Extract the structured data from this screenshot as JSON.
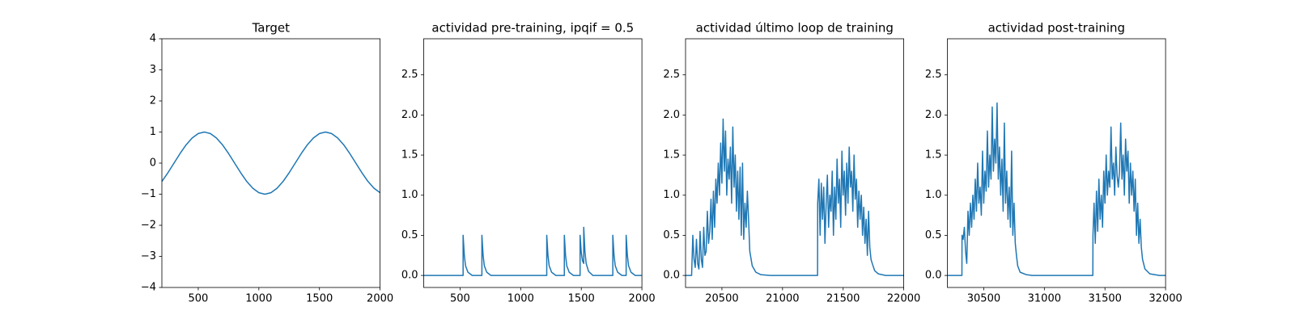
{
  "chart_data": [
    {
      "type": "line",
      "title": "Target",
      "x": [
        200,
        250,
        300,
        350,
        400,
        450,
        500,
        550,
        600,
        650,
        700,
        750,
        800,
        850,
        900,
        950,
        1000,
        1050,
        1100,
        1150,
        1200,
        1250,
        1300,
        1350,
        1400,
        1450,
        1500,
        1550,
        1600,
        1650,
        1700,
        1750,
        1800,
        1850,
        1900,
        1950,
        2000
      ],
      "series": [
        {
          "color": "#1f77b4",
          "values": [
            -0.588,
            -0.309,
            0,
            0.309,
            0.588,
            0.809,
            0.951,
            1,
            0.951,
            0.809,
            0.588,
            0.309,
            0,
            -0.309,
            -0.588,
            -0.809,
            -0.951,
            -1,
            -0.951,
            -0.809,
            -0.588,
            -0.309,
            0,
            0.309,
            0.588,
            0.809,
            0.951,
            1,
            0.951,
            0.809,
            0.588,
            0.309,
            0,
            -0.309,
            -0.588,
            -0.809,
            -0.951
          ]
        }
      ],
      "xlim": [
        200,
        2000
      ],
      "xticks": [
        500,
        1000,
        1500,
        2000
      ],
      "ylim": [
        -4,
        4
      ],
      "yticks": [
        {
          "value": -4,
          "label": "−4"
        },
        {
          "value": -3,
          "label": "−3"
        },
        {
          "value": -2,
          "label": "−2"
        },
        {
          "value": -1,
          "label": "−1"
        },
        0,
        1,
        2,
        3,
        4
      ]
    },
    {
      "type": "line",
      "title": "actividad pre-training, ipqif = 0.5",
      "x": [
        200,
        525,
        525,
        535,
        545,
        565,
        600,
        680,
        680,
        690,
        700,
        720,
        755,
        1215,
        1215,
        1225,
        1235,
        1255,
        1290,
        1360,
        1360,
        1370,
        1380,
        1400,
        1435,
        1490,
        1490,
        1500,
        1510,
        1520,
        1520,
        1530,
        1540,
        1560,
        1595,
        1760,
        1760,
        1770,
        1780,
        1800,
        1835,
        1870,
        1870,
        1880,
        1890,
        1910,
        1945,
        2000
      ],
      "series": [
        {
          "color": "#1f77b4",
          "values": [
            0,
            0,
            0.5,
            0.25,
            0.12,
            0.04,
            0,
            0,
            0.5,
            0.25,
            0.12,
            0.04,
            0,
            0,
            0.5,
            0.25,
            0.12,
            0.04,
            0,
            0,
            0.5,
            0.25,
            0.12,
            0.04,
            0,
            0,
            0.5,
            0.28,
            0.18,
            0.15,
            0.6,
            0.3,
            0.15,
            0.05,
            0,
            0,
            0.5,
            0.25,
            0.12,
            0.04,
            0,
            0,
            0.5,
            0.25,
            0.12,
            0.04,
            0,
            0
          ]
        }
      ],
      "xlim": [
        200,
        2000
      ],
      "xticks": [
        500,
        1000,
        1500,
        2000
      ],
      "ylim": [
        -0.15,
        2.95
      ],
      "yticks": [
        {
          "value": 0,
          "label": "0.0"
        },
        {
          "value": 0.5,
          "label": "0.5"
        },
        {
          "value": 1,
          "label": "1.0"
        },
        {
          "value": 1.5,
          "label": "1.5"
        },
        {
          "value": 2,
          "label": "2.0"
        },
        {
          "value": 2.5,
          "label": "2.5"
        }
      ]
    },
    {
      "type": "line",
      "title": "actividad último loop de training",
      "x": [
        20200,
        20250,
        20260,
        20270,
        20280,
        20290,
        20300,
        20310,
        20320,
        20330,
        20340,
        20350,
        20360,
        20370,
        20380,
        20390,
        20400,
        20410,
        20420,
        20430,
        20440,
        20450,
        20460,
        20470,
        20480,
        20490,
        20500,
        20510,
        20520,
        20530,
        20540,
        20550,
        20560,
        20570,
        20580,
        20590,
        20600,
        20610,
        20620,
        20630,
        20640,
        20650,
        20660,
        20670,
        20680,
        20690,
        20700,
        20710,
        20720,
        20730,
        20750,
        20780,
        20820,
        20900,
        21289,
        21290,
        21300,
        21310,
        21320,
        21330,
        21340,
        21350,
        21360,
        21370,
        21380,
        21390,
        21400,
        21410,
        21420,
        21430,
        21440,
        21450,
        21460,
        21470,
        21480,
        21490,
        21500,
        21510,
        21520,
        21530,
        21540,
        21550,
        21560,
        21570,
        21580,
        21590,
        21600,
        21610,
        21620,
        21630,
        21640,
        21650,
        21660,
        21670,
        21680,
        21690,
        21700,
        21710,
        21720,
        21730,
        21740,
        21760,
        21790,
        21850,
        22000
      ],
      "series": [
        {
          "color": "#1f77b4",
          "values": [
            0,
            0,
            0.5,
            0.2,
            0.1,
            0.45,
            0.15,
            0.08,
            0.55,
            0.2,
            0.1,
            0.6,
            0.25,
            0.3,
            0.8,
            0.4,
            0.55,
            0.95,
            0.45,
            1.05,
            0.6,
            1.2,
            0.9,
            1.4,
            1.0,
            1.65,
            1.15,
            1.95,
            1.3,
            1.8,
            1.0,
            1.45,
            1.2,
            1.6,
            0.9,
            1.85,
            1.1,
            1.5,
            0.8,
            1.3,
            0.7,
            1.35,
            0.5,
            1.4,
            0.45,
            0.9,
            0.6,
            1.05,
            0.7,
            0.3,
            0.12,
            0.04,
            0.01,
            0,
            0,
            0.9,
            1.2,
            0.5,
            1.15,
            0.7,
            1.1,
            0.4,
            0.9,
            1.25,
            0.6,
            1.0,
            0.8,
            1.3,
            0.5,
            1.1,
            0.7,
            1.45,
            0.9,
            1.2,
            0.6,
            1.55,
            1.0,
            1.3,
            0.75,
            1.4,
            0.9,
            1.6,
            1.1,
            1.3,
            0.8,
            1.5,
            0.95,
            1.2,
            0.6,
            1.05,
            0.7,
            1.0,
            0.5,
            0.85,
            0.4,
            0.7,
            0.25,
            0.8,
            0.35,
            0.2,
            0.15,
            0.06,
            0.02,
            0,
            0
          ]
        }
      ],
      "xlim": [
        20200,
        22000
      ],
      "xticks": [
        20500,
        21000,
        21500,
        22000
      ],
      "ylim": [
        -0.15,
        2.95
      ],
      "yticks": [
        {
          "value": 0,
          "label": "0.0"
        },
        {
          "value": 0.5,
          "label": "0.5"
        },
        {
          "value": 1,
          "label": "1.0"
        },
        {
          "value": 1.5,
          "label": "1.5"
        },
        {
          "value": 2,
          "label": "2.0"
        },
        {
          "value": 2.5,
          "label": "2.5"
        }
      ]
    },
    {
      "type": "line",
      "title": "actividad post-training",
      "x": [
        30200,
        30320,
        30321,
        30330,
        30340,
        30350,
        30360,
        30370,
        30380,
        30390,
        30400,
        30410,
        30420,
        30430,
        30440,
        30450,
        30460,
        30470,
        30480,
        30490,
        30500,
        30510,
        30520,
        30530,
        30540,
        30550,
        30560,
        30570,
        30580,
        30590,
        30600,
        30610,
        30620,
        30630,
        30640,
        30650,
        30660,
        30670,
        30680,
        30690,
        30700,
        30710,
        30720,
        30730,
        30740,
        30750,
        30760,
        30770,
        30780,
        30800,
        30850,
        30900,
        31400,
        31401,
        31410,
        31420,
        31430,
        31440,
        31450,
        31460,
        31470,
        31480,
        31490,
        31500,
        31510,
        31520,
        31530,
        31540,
        31550,
        31560,
        31570,
        31580,
        31590,
        31600,
        31610,
        31620,
        31630,
        31640,
        31650,
        31660,
        31670,
        31680,
        31690,
        31700,
        31710,
        31720,
        31730,
        31740,
        31750,
        31760,
        31770,
        31780,
        31790,
        31800,
        31810,
        31830,
        31870,
        31950,
        32000
      ],
      "series": [
        {
          "color": "#1f77b4",
          "values": [
            0,
            0,
            0.5,
            0.45,
            0.6,
            0.3,
            0.15,
            0.8,
            0.5,
            0.9,
            0.6,
            1.0,
            0.7,
            1.2,
            0.8,
            1.4,
            0.9,
            1.1,
            0.75,
            1.55,
            0.9,
            1.3,
            1.05,
            1.8,
            1.1,
            1.5,
            1.2,
            2.1,
            1.3,
            1.7,
            1.4,
            2.15,
            1.2,
            1.6,
            1.0,
            1.45,
            0.8,
            1.9,
            0.9,
            1.3,
            0.7,
            1.1,
            0.6,
            1.55,
            0.5,
            0.9,
            0.4,
            0.25,
            0.12,
            0.04,
            0.01,
            0,
            0,
            0.5,
            0.9,
            0.4,
            1.05,
            0.55,
            1.2,
            0.7,
            1.0,
            0.6,
            1.3,
            0.9,
            1.5,
            1.0,
            1.3,
            1.1,
            1.85,
            1.2,
            1.4,
            1.0,
            1.6,
            1.25,
            1.1,
            1.3,
            1.9,
            1.2,
            1.5,
            1.0,
            1.7,
            1.3,
            1.55,
            0.9,
            1.4,
            1.0,
            1.3,
            0.8,
            1.2,
            0.5,
            0.9,
            0.4,
            0.7,
            0.35,
            0.2,
            0.08,
            0.02,
            0,
            0
          ]
        }
      ],
      "xlim": [
        30200,
        32000
      ],
      "xticks": [
        30500,
        31000,
        31500,
        32000
      ],
      "ylim": [
        -0.15,
        2.95
      ],
      "yticks": [
        {
          "value": 0,
          "label": "0.0"
        },
        {
          "value": 0.5,
          "label": "0.5"
        },
        {
          "value": 1,
          "label": "1.0"
        },
        {
          "value": 1.5,
          "label": "1.5"
        },
        {
          "value": 2,
          "label": "2.0"
        },
        {
          "value": 2.5,
          "label": "2.5"
        }
      ]
    }
  ]
}
